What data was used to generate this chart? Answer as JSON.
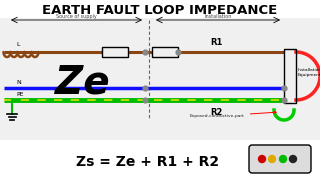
{
  "title": "EARTH FAULT LOOP IMPEDANCE",
  "subtitle_left": "Source of supply",
  "subtitle_right": "Installation",
  "label_L": "L",
  "label_N": "N",
  "label_PE": "PE",
  "label_Ze": "Ze",
  "label_R1": "R1",
  "label_R2": "R2",
  "label_eq": "Zs = Ze + R1 + R2",
  "label_install": "Installation\nEquipment",
  "label_exposed": "Exposed-conductive-part",
  "bg_color": "#ffffff",
  "diagram_bg": "#e8e8e8",
  "title_color": "#000000",
  "line_L_color": "#8B4513",
  "line_N_color": "#1010ff",
  "line_PE_color": "#00bb00",
  "line_PE_yellow": "#dddd00",
  "Ze_color": "#000000",
  "red_curve_color": "#ff2222",
  "green_curve_color": "#00cc00",
  "coil_color": "#8B4513",
  "box_color": "#000000",
  "dashed_color": "#666666",
  "ground_color": "#00bb00",
  "dot_color": "#888888"
}
